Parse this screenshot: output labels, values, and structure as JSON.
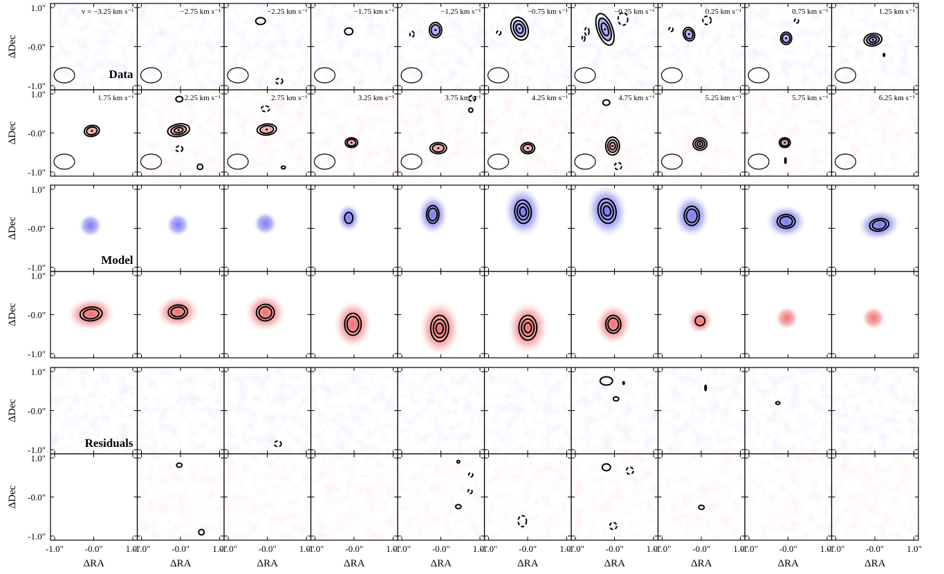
{
  "figure": {
    "row_labels": [
      "Data",
      "Model",
      "Residuals"
    ],
    "velocities": [
      "v = −3.25 km s⁻¹",
      "−2.75 km s⁻¹",
      "−2.25 km s⁻¹",
      "−1.75 km s⁻¹",
      "−1.25 km s⁻¹",
      "−0.75 km s⁻¹",
      "−0.25 km s⁻¹",
      "0.25 km s⁻¹",
      "0.75 km s⁻¹",
      "1.25 km s⁻¹",
      "1.75 km s⁻¹",
      "2.25 km s⁻¹",
      "2.75 km s⁻¹",
      "3.25 km s⁻¹",
      "3.75 km s⁻¹",
      "4.25 km s⁻¹",
      "4.75 km s⁻¹",
      "5.25 km s⁻¹",
      "5.75 km s⁻¹",
      "6.25 km s⁻¹"
    ],
    "y_axis_label": "ΔDec",
    "x_axis_label": "ΔRA",
    "y_tick_labels": [
      "1.0\"",
      "-0.0\"",
      "-1.0\""
    ],
    "x_tick_labels": [
      "-1.0\"",
      "-0.0\"",
      "1.0\""
    ]
  }
}
